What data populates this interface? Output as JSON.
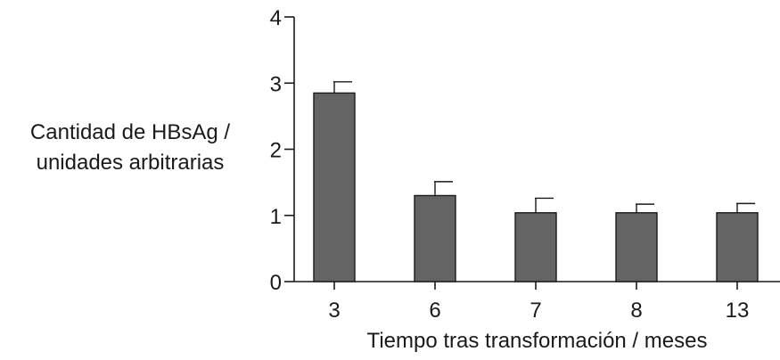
{
  "chart_data": {
    "type": "bar",
    "categories": [
      "3",
      "6",
      "7",
      "8",
      "13"
    ],
    "values": [
      2.85,
      1.3,
      1.04,
      1.04,
      1.04
    ],
    "errors": [
      0.17,
      0.21,
      0.22,
      0.13,
      0.14
    ],
    "ylabel_line1": "Cantidad de HBsAg /",
    "ylabel_line2": "unidades arbitrarias",
    "xlabel": "Tiempo tras transformación / meses",
    "ylim": [
      0,
      4
    ],
    "yticks": [
      0,
      1,
      2,
      3,
      4
    ],
    "grid": false,
    "bar_color": "#646464"
  }
}
